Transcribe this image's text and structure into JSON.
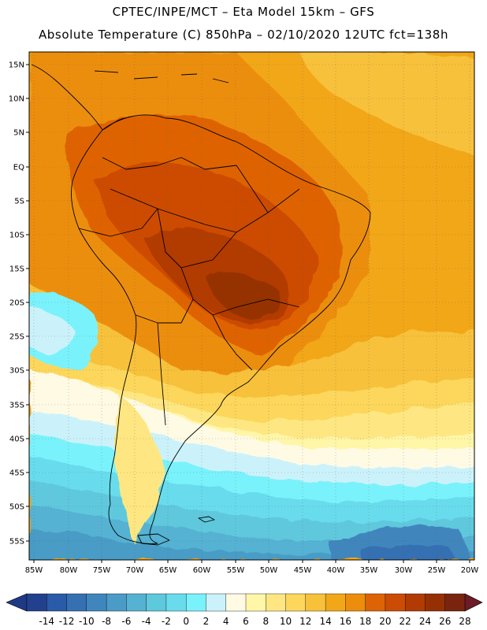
{
  "header": {
    "line1": "CPTEC/INPE/MCT –  Eta Model 15km – GFS",
    "line2": "Absolute Temperature (C) 850hPa – 02/10/2020 12UTC fct=138h"
  },
  "axes": {
    "lat_labels": [
      "15N",
      "10N",
      "5N",
      "EQ",
      "5S",
      "10S",
      "15S",
      "20S",
      "25S",
      "30S",
      "35S",
      "40S",
      "45S",
      "50S",
      "55S"
    ],
    "lon_labels": [
      "85W",
      "80W",
      "75W",
      "70W",
      "65W",
      "60W",
      "55W",
      "50W",
      "45W",
      "40W",
      "35W",
      "30W",
      "25W",
      "20W"
    ]
  },
  "color_scale": {
    "labels": [
      "-14",
      "-12",
      "-10",
      "-8",
      "-6",
      "-4",
      "-2",
      "0",
      "2",
      "4",
      "6",
      "8",
      "10",
      "12",
      "14",
      "16",
      "18",
      "20",
      "22",
      "24",
      "26",
      "28"
    ],
    "colors": [
      "#23408f",
      "#2a5ba8",
      "#3470b2",
      "#3f86bd",
      "#4a9cc6",
      "#55b2d2",
      "#5ec8dd",
      "#68dcec",
      "#7af2fb",
      "#cbf2fb",
      "#fffae4",
      "#fff6a8",
      "#fee782",
      "#fcd75c",
      "#f7c13a",
      "#f2a718",
      "#ec8e0c",
      "#de6306",
      "#cc4b05",
      "#b23b04",
      "#953005",
      "#7a2410"
    ]
  },
  "map": {
    "ocean_north_color": "#f2a718",
    "land_hot_color": "#cc4b05",
    "land_core_color": "#953005",
    "border_color": "#000000"
  }
}
